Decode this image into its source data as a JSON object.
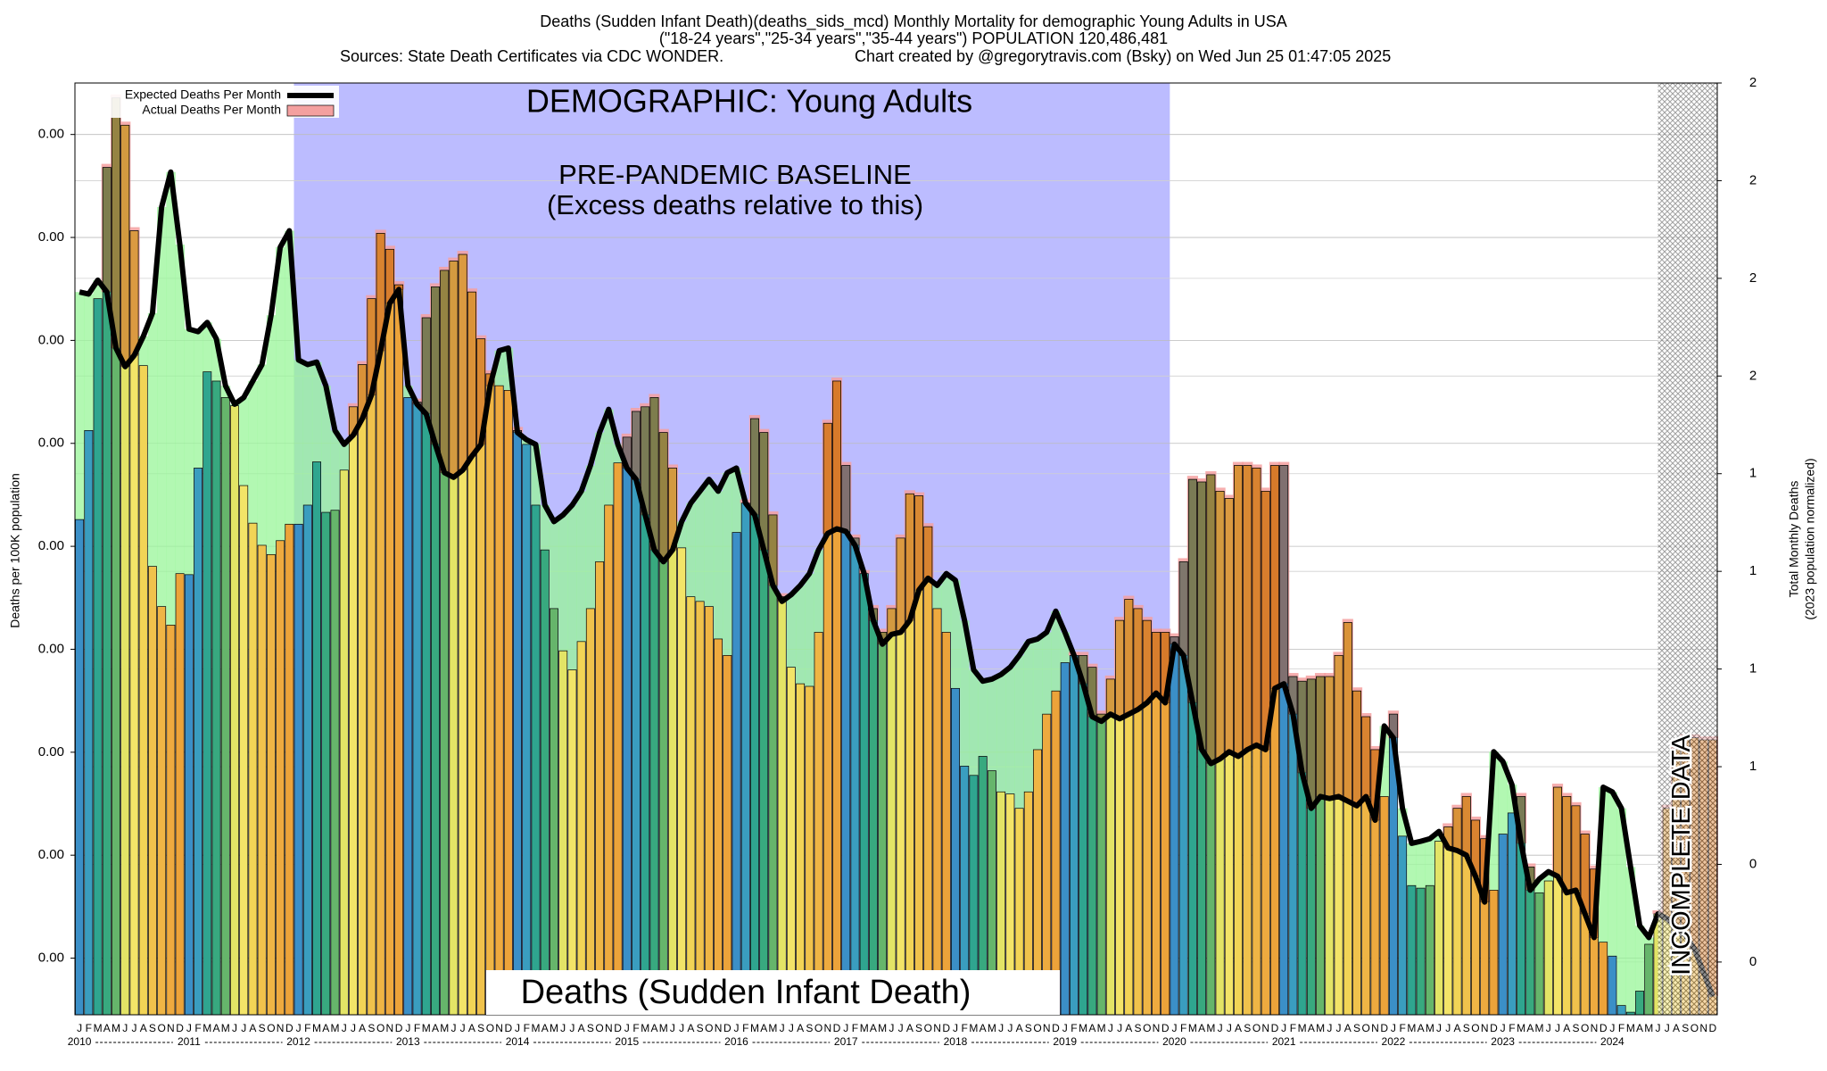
{
  "chart_data": {
    "type": "bar_line",
    "title": "Deaths (Sudden Infant Death)(deaths_sids_mcd) Monthly Mortality for demographic Young Adults in USA",
    "subtitle": "(\"18-24 years\",\"25-34 years\",\"35-44 years\") POPULATION 120,486,481",
    "sources": "Sources: State Death Certificates via CDC WONDER.",
    "credit": "Chart created by @gregorytravis.com (Bsky) on Wed Jun 25 01:47:05 2025",
    "ylabel": "Deaths per 100K population",
    "y2label": "Total Monthly Deaths",
    "y2label_note": "(2023 population normalized)",
    "annotations": {
      "demographic": "DEMOGRAPHIC: Young Adults",
      "baseline": "PRE-PANDEMIC BASELINE",
      "baseline_note": "(Excess deaths relative to this)",
      "cause": "Deaths (Sudden Infant Death)",
      "incomplete": "INCOMPLETE DATA"
    },
    "years": [
      "2010",
      "2011",
      "2012",
      "2013",
      "2014",
      "2015",
      "2016",
      "2017",
      "2018",
      "2019",
      "2020",
      "2021",
      "2022",
      "2023",
      "2024"
    ],
    "categories": [
      "J",
      "F",
      "M",
      "A",
      "M",
      "J",
      "J",
      "A",
      "S",
      "O",
      "N",
      "D",
      "J",
      "F",
      "M",
      "A",
      "M",
      "J",
      "J",
      "A",
      "S",
      "O",
      "N",
      "D",
      "J",
      "F",
      "M",
      "A",
      "M",
      "J",
      "J",
      "A",
      "S",
      "O",
      "N",
      "D",
      "J",
      "F",
      "M",
      "A",
      "M",
      "J",
      "J",
      "A",
      "S",
      "O",
      "N",
      "D",
      "J",
      "F",
      "M",
      "A",
      "M",
      "J",
      "J",
      "A",
      "S",
      "O",
      "N",
      "D",
      "J",
      "F",
      "M",
      "A",
      "M",
      "J",
      "J",
      "A",
      "S",
      "O",
      "N",
      "D",
      "J",
      "F",
      "M",
      "A",
      "M",
      "J",
      "J",
      "A",
      "S",
      "O",
      "N",
      "D",
      "J",
      "F",
      "M",
      "A",
      "M",
      "J",
      "J",
      "A",
      "S",
      "O",
      "N",
      "D",
      "J",
      "F",
      "M",
      "A",
      "M",
      "J",
      "J",
      "A",
      "S",
      "O",
      "N",
      "D",
      "J",
      "F",
      "M",
      "A",
      "M",
      "J",
      "J",
      "A",
      "S",
      "O",
      "N",
      "D",
      "J",
      "F",
      "M",
      "A",
      "M",
      "J",
      "J",
      "A",
      "S",
      "O",
      "N",
      "D",
      "J",
      "F",
      "M",
      "A",
      "M",
      "J",
      "J",
      "A",
      "S",
      "O",
      "N",
      "D",
      "J",
      "F",
      "M",
      "A",
      "M",
      "J",
      "J",
      "A",
      "S",
      "O",
      "N",
      "D",
      "J",
      "F",
      "M",
      "A",
      "M",
      "J",
      "J",
      "A",
      "S",
      "O",
      "N",
      "D",
      "J",
      "F",
      "M",
      "A",
      "M",
      "J",
      "J",
      "A",
      "S",
      "O",
      "N",
      "D"
    ],
    "series": [
      {
        "name": "Expected Deaths Per Month",
        "color": "#000000",
        "values": [
          0.001404,
          0.0014,
          0.001427,
          0.001404,
          0.001295,
          0.001259,
          0.001281,
          0.001318,
          0.001363,
          0.001569,
          0.001637,
          0.001496,
          0.001332,
          0.001327,
          0.001345,
          0.001313,
          0.001222,
          0.001186,
          0.001199,
          0.001231,
          0.001263,
          0.001359,
          0.001491,
          0.001523,
          0.001272,
          0.001263,
          0.001268,
          0.001222,
          0.001135,
          0.001108,
          0.001126,
          0.001158,
          0.001204,
          0.00129,
          0.001382,
          0.001409,
          0.001222,
          0.001186,
          0.001167,
          0.001108,
          0.001053,
          0.001044,
          0.001058,
          0.001085,
          0.001108,
          0.001222,
          0.00129,
          0.001295,
          0.001131,
          0.001117,
          0.001108,
          0.00099,
          0.000958,
          0.000971,
          0.00099,
          0.001017,
          0.001067,
          0.001131,
          0.001176,
          0.001108,
          0.001062,
          0.00104,
          0.000971,
          0.000903,
          0.00088,
          0.000903,
          0.000958,
          0.000994,
          0.001017,
          0.00104,
          0.001017,
          0.001053,
          0.001062,
          0.000994,
          0.000971,
          0.000903,
          0.000834,
          0.000803,
          0.000816,
          0.000834,
          0.000857,
          0.000903,
          0.000935,
          0.000944,
          0.000939,
          0.000912,
          0.000857,
          0.000766,
          0.00072,
          0.000739,
          0.000743,
          0.000766,
          0.000825,
          0.000848,
          0.000834,
          0.000857,
          0.000844,
          0.000766,
          0.00067,
          0.000648,
          0.000652,
          0.000661,
          0.000675,
          0.000698,
          0.000725,
          0.00073,
          0.000743,
          0.000784,
          0.000743,
          0.000698,
          0.000643,
          0.000579,
          0.00057,
          0.000584,
          0.000575,
          0.000584,
          0.000593,
          0.000606,
          0.000625,
          0.000606,
          0.00072,
          0.000698,
          0.000606,
          0.000515,
          0.000488,
          0.000497,
          0.000511,
          0.000502,
          0.000515,
          0.000524,
          0.000515,
          0.000634,
          0.000643,
          0.000584,
          0.00047,
          0.000401,
          0.000424,
          0.00042,
          0.000424,
          0.000415,
          0.000406,
          0.000424,
          0.000378,
          0.000561,
          0.000538,
          0.000401,
          0.000333,
          0.000337,
          0.000342,
          0.000356,
          0.000324,
          0.000319,
          0.00031,
          0.000269,
          0.000219,
          0.000511,
          0.000492,
          0.000447,
          0.000333,
          0.000242,
          0.000264,
          0.000278,
          0.000269,
          0.000237,
          0.000242,
          0.000196,
          0.00015,
          0.000442,
          0.000433,
          0.000401,
          0.000287,
          0.000173,
          0.00015,
          0.000196,
          0.000187,
          0.000169,
          0.000155,
          0.000128,
          8.2e-05,
          3.6e-05
        ]
      },
      {
        "name": "Actual Deaths Per Month",
        "color": "#f4a0a0",
        "values": [
          0.000962,
          0.001135,
          0.001391,
          0.001646,
          0.001781,
          0.001728,
          0.001523,
          0.001261,
          0.000871,
          0.000793,
          0.000757,
          0.000857,
          0.000855,
          0.001062,
          0.001249,
          0.001231,
          0.001199,
          0.001183,
          0.001028,
          0.000955,
          0.000912,
          0.000894,
          0.000921,
          0.000953,
          0.000953,
          0.00099,
          0.001074,
          0.000976,
          0.00098,
          0.001058,
          0.001181,
          0.001263,
          0.001391,
          0.001518,
          0.001487,
          0.001418,
          0.001199,
          0.00119,
          0.001354,
          0.001414,
          0.001446,
          0.001464,
          0.001477,
          0.001404,
          0.001313,
          0.001245,
          0.001222,
          0.001213,
          0.001135,
          0.001108,
          0.00099,
          0.000903,
          0.000789,
          0.000707,
          0.00067,
          0.000725,
          0.000789,
          0.00088,
          0.00099,
          0.001072,
          0.001122,
          0.001172,
          0.001181,
          0.001199,
          0.001131,
          0.001062,
          0.000907,
          0.000812,
          0.000803,
          0.000793,
          0.00073,
          0.000698,
          0.000937,
          0.000994,
          0.001158,
          0.001131,
          0.000971,
          0.000812,
          0.000675,
          0.000643,
          0.000638,
          0.000743,
          0.001149,
          0.001231,
          0.001067,
          0.000926,
          0.000857,
          0.000789,
          0.000743,
          0.000789,
          0.000926,
          0.001012,
          0.001008,
          0.000948,
          0.000789,
          0.000743,
          0.000634,
          0.000483,
          0.000465,
          0.000502,
          0.000474,
          0.000433,
          0.000429,
          0.000401,
          0.000433,
          0.000515,
          0.000584,
          0.000629,
          0.000684,
          0.000698,
          0.000698,
          0.000675,
          0.000584,
          0.000652,
          0.000766,
          0.000807,
          0.000789,
          0.000766,
          0.000743,
          0.000743,
          0.000734,
          0.00088,
          0.00104,
          0.001035,
          0.001049,
          0.001017,
          0.001003,
          0.001067,
          0.001067,
          0.001062,
          0.001017,
          0.001067,
          0.001067,
          0.000657,
          0.000648,
          0.000652,
          0.000657,
          0.000657,
          0.000698,
          0.000762,
          0.000629,
          0.000579,
          0.000515,
          0.000424,
          0.000584,
          0.000347,
          0.000251,
          0.000246,
          0.000251,
          0.000337,
          0.000365,
          0.000401,
          0.000424,
          0.000378,
          0.000342,
          0.000242,
          0.000351,
          0.000392,
          0.000424,
          0.000287,
          0.000237,
          0.00026,
          0.000442,
          0.000424,
          0.000406,
          0.000351,
          0.000283,
          0.000141,
          0.000114,
          1.8e-05,
          5e-06,
          4.6e-05,
          0.000137,
          0.000196,
          0.000401,
          0.000515,
          0.000538,
          0.000538,
          0.000534,
          0.000534
        ]
      }
    ],
    "month_colors": [
      "#3b8fc7",
      "#3a9dbf",
      "#2fa58f",
      "#38a97f",
      "#66b56b",
      "#e3e466",
      "#f3e468",
      "#f2d456",
      "#f0c24c",
      "#efb545",
      "#eeaa3f",
      "#eca33a"
    ],
    "excess_bar_color": "#c4521c",
    "deficit_color": "#98f598",
    "baseline_color": "#bcbcff",
    "ylim": [
      0,
      0.00181
    ],
    "yticks": [
      {
        "value": 0.00011,
        "label": "0.00"
      },
      {
        "value": 0.00031,
        "label": "0.00"
      },
      {
        "value": 0.00051,
        "label": "0.00"
      },
      {
        "value": 0.00071,
        "label": "0.00"
      },
      {
        "value": 0.00091,
        "label": "0.00"
      },
      {
        "value": 0.00111,
        "label": "0.00"
      },
      {
        "value": 0.00131,
        "label": "0.00"
      },
      {
        "value": 0.00151,
        "label": "0.00"
      },
      {
        "value": 0.00171,
        "label": "0.00"
      }
    ],
    "y2lim": [
      -0.135,
      2.25
    ],
    "y2ticks": [
      0,
      {
        "value": 0.25,
        "label": "0"
      },
      {
        "value": 0.5,
        "label": "1"
      },
      {
        "value": 0.75,
        "label": "1"
      },
      1,
      {
        "value": 1.25,
        "label": "1"
      },
      {
        "value": 1.5,
        "label": "2"
      },
      {
        "value": 1.75,
        "label": "2"
      },
      2,
      {
        "value": 2.25,
        "label": "2"
      }
    ],
    "grid": true,
    "legend": "upper left"
  }
}
